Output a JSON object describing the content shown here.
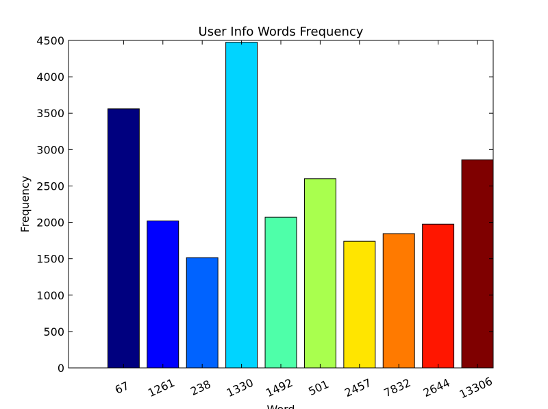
{
  "chart_data": {
    "type": "bar",
    "title": "User Info Words Frequency",
    "xlabel": "Word",
    "ylabel": "Frequency",
    "categories": [
      "67",
      "1261",
      "238",
      "1330",
      "1492",
      "501",
      "2457",
      "7832",
      "2644",
      "13306"
    ],
    "values": [
      3560,
      2020,
      1515,
      4475,
      2070,
      2600,
      1740,
      1845,
      1975,
      2860
    ],
    "colors": [
      "#00007f",
      "#0000ff",
      "#0063ff",
      "#00d4ff",
      "#4effa9",
      "#a9ff4e",
      "#ffe500",
      "#ff7a00",
      "#ff1600",
      "#7f0000"
    ],
    "ylim": [
      0,
      4500
    ],
    "yticks": [
      0,
      500,
      1000,
      1500,
      2000,
      2500,
      3000,
      3500,
      4000,
      4500
    ],
    "grid": false,
    "legend": "none"
  }
}
